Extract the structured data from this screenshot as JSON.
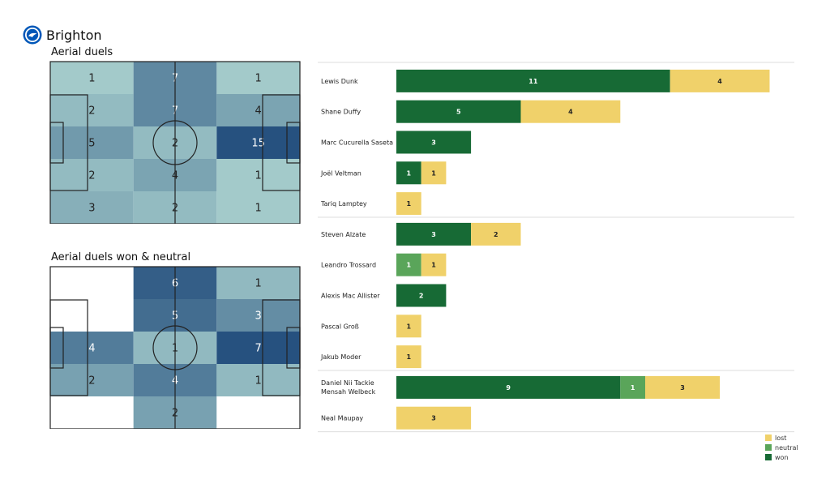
{
  "header": {
    "team": "Brighton",
    "logo_icon": "brighton-crest-icon"
  },
  "panels": {
    "aerial_title": "Aerial duels",
    "won_neutral_title": "Aerial duels won & neutral"
  },
  "colors": {
    "won": "#176a35",
    "neutral": "#5aa55a",
    "lost": "#f0d16a",
    "heat_low": "#c2e8dd",
    "heat_high": "#26517f"
  },
  "chart_data": [
    {
      "type": "heatmap",
      "title": "Aerial duels",
      "grid": [
        [
          1,
          7,
          1
        ],
        [
          2,
          7,
          4
        ],
        [
          5,
          2,
          15
        ],
        [
          2,
          4,
          1
        ],
        [
          3,
          2,
          1
        ]
      ]
    },
    {
      "type": "heatmap",
      "title": "Aerial duels won & neutral",
      "grid": [
        [
          null,
          6,
          1
        ],
        [
          null,
          5,
          3
        ],
        [
          4,
          1,
          7
        ],
        [
          2,
          4,
          1
        ],
        [
          null,
          2,
          null
        ]
      ]
    },
    {
      "type": "bar",
      "orientation": "horizontal",
      "stacked": true,
      "categories": [
        "Lewis Dunk",
        "Shane Duffy",
        "Marc Cucurella Saseta",
        "Joël Veltman",
        "Tariq Lamptey",
        "Steven Alzate",
        "Leandro Trossard",
        "Alexis Mac Allister",
        "Pascal Groß",
        "Jakub Moder",
        "Daniel Nii Tackie Mensah Welbeck",
        "Neal Maupay"
      ],
      "category_lines": [
        [
          "Lewis Dunk"
        ],
        [
          "Shane Duffy"
        ],
        [
          "Marc Cucurella Saseta"
        ],
        [
          "Joël Veltman"
        ],
        [
          "Tariq Lamptey"
        ],
        [
          "Steven Alzate"
        ],
        [
          "Leandro Trossard"
        ],
        [
          "Alexis Mac Allister"
        ],
        [
          "Pascal Groß"
        ],
        [
          "Jakub Moder"
        ],
        [
          "Daniel Nii Tackie",
          "Mensah Welbeck"
        ],
        [
          "Neal Maupay"
        ]
      ],
      "groups": [
        [
          0,
          4
        ],
        [
          5,
          9
        ],
        [
          10,
          11
        ]
      ],
      "series": [
        {
          "name": "won",
          "values": [
            11,
            5,
            3,
            1,
            0,
            3,
            0,
            2,
            0,
            0,
            9,
            0
          ]
        },
        {
          "name": "neutral",
          "values": [
            0,
            0,
            0,
            0,
            0,
            0,
            1,
            0,
            0,
            0,
            1,
            0
          ]
        },
        {
          "name": "lost",
          "values": [
            4,
            4,
            0,
            1,
            1,
            2,
            1,
            0,
            1,
            1,
            3,
            3
          ]
        }
      ],
      "legend": {
        "position": "bottom-right",
        "items": [
          "lost",
          "neutral",
          "won"
        ]
      }
    }
  ]
}
